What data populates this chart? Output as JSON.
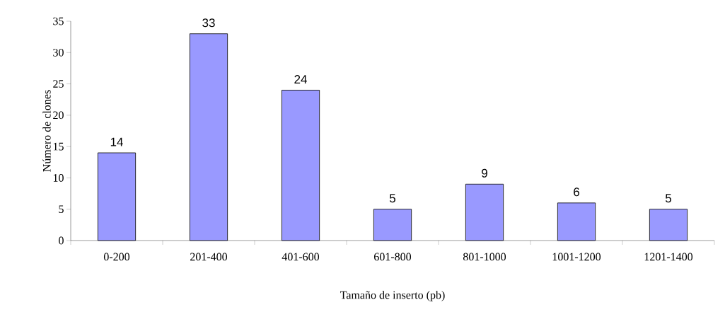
{
  "chart_data": {
    "type": "bar",
    "xlabel": "Tamaño de inserto (pb)",
    "ylabel": "Número de clones",
    "categories": [
      "0-200",
      "201-400",
      "401-600",
      "601-800",
      "801-1000",
      "1001-1200",
      "1201-1400"
    ],
    "values": [
      14,
      33,
      24,
      5,
      9,
      6,
      5
    ],
    "color": "#9999ff",
    "ylim": [
      0,
      35
    ],
    "yticks": [
      0,
      5,
      10,
      15,
      20,
      25,
      30,
      35
    ],
    "data_labels": true
  }
}
